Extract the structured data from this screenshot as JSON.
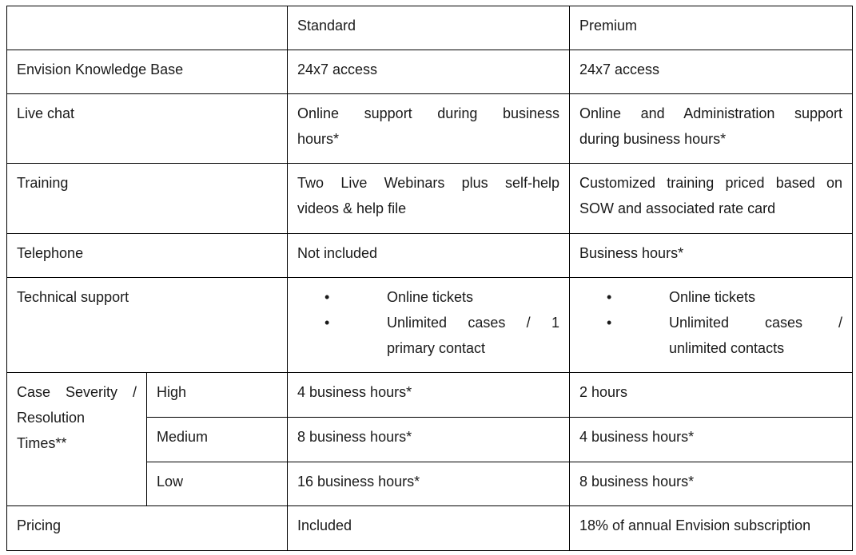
{
  "headers": {
    "blank": "",
    "standard": "Standard",
    "premium": "Premium"
  },
  "rows": {
    "knowledge_base": {
      "label": "Envision Knowledge Base",
      "standard": "24x7 access",
      "premium": "24x7 access"
    },
    "live_chat": {
      "label": "Live chat",
      "standard": [
        "Online support during business",
        "hours*"
      ],
      "premium": [
        "Online and Administration support",
        "during business hours*"
      ]
    },
    "training": {
      "label": "Training",
      "standard": [
        "Two Live Webinars plus self-help",
        "videos & help file"
      ],
      "premium": [
        "Customized training priced based on",
        "SOW and associated rate card"
      ]
    },
    "telephone": {
      "label": "Telephone",
      "standard": "Not included",
      "premium": "Business hours*"
    },
    "technical_support": {
      "label": "Technical support",
      "standard": {
        "bullet1": "Online tickets",
        "bullet2": [
          "Unlimited cases / 1",
          "primary contact"
        ]
      },
      "premium": {
        "bullet1": "Online tickets",
        "bullet2": [
          "Unlimited cases /",
          "unlimited contacts"
        ]
      }
    },
    "severity": {
      "label": [
        "Case Severity /",
        "Resolution",
        "Times**"
      ],
      "high": {
        "label": "High",
        "standard": "4 business hours*",
        "premium": "2 hours"
      },
      "medium": {
        "label": "Medium",
        "standard": "8 business hours*",
        "premium": "4 business hours*"
      },
      "low": {
        "label": "Low",
        "standard": "16 business hours*",
        "premium": "8 business hours*"
      }
    },
    "pricing": {
      "label": "Pricing",
      "standard": "Included",
      "premium": "18% of annual Envision subscription"
    }
  },
  "bullet_glyph": "•"
}
